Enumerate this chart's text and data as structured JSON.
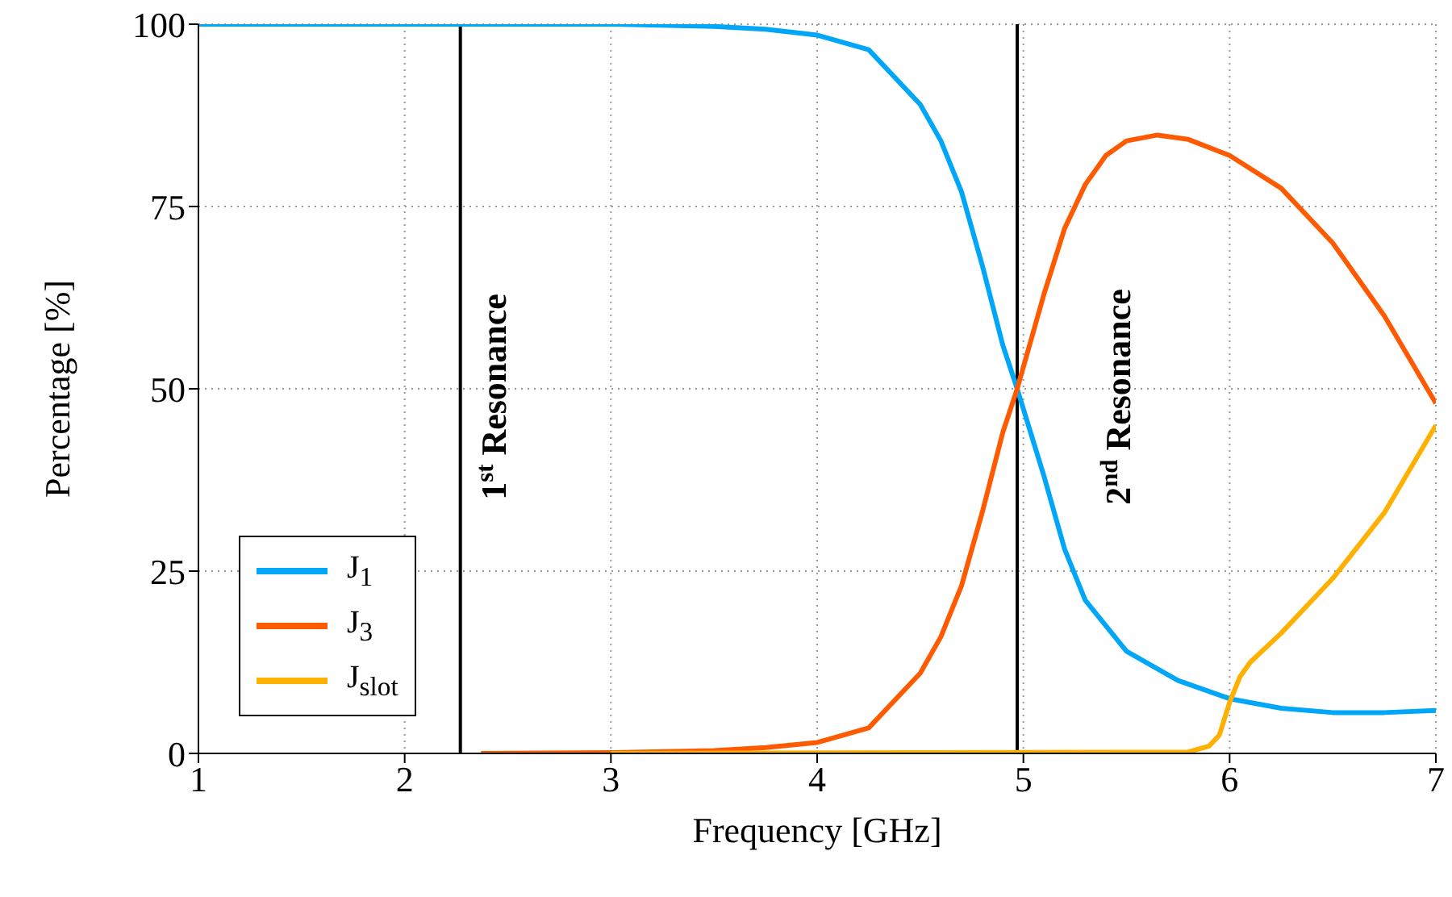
{
  "chart_data": {
    "type": "line",
    "xlabel": "Frequency [GHz]",
    "ylabel": "Percentage [%]",
    "xlim": [
      1,
      7
    ],
    "xticks": [
      1,
      2,
      3,
      4,
      5,
      6,
      7
    ],
    "ylim": [
      0,
      100
    ],
    "yticks": [
      0,
      25,
      50,
      75,
      100
    ],
    "grid": true,
    "legend": "bottom left",
    "marker": "none",
    "line_style": "solid",
    "series": [
      {
        "name": "J$_{1}$",
        "color": "#00a6f7",
        "x": [
          1,
          2,
          3,
          3.5,
          3.75,
          4,
          4.25,
          4.5,
          4.6,
          4.7,
          4.8,
          4.9,
          4.97,
          5.1,
          5.2,
          5.3,
          5.5,
          5.75,
          6,
          6.25,
          6.5,
          6.75,
          7
        ],
        "values": [
          100,
          100,
          100,
          99.7,
          99.3,
          98.5,
          96.5,
          89,
          84,
          77,
          67,
          56,
          50,
          38,
          28,
          21,
          14,
          10,
          7.5,
          6.2,
          5.6,
          5.6,
          5.9
        ]
      },
      {
        "name": "J$_{3}$",
        "color": "#ff5a00",
        "x": [
          2.37,
          3,
          3.5,
          3.75,
          4,
          4.25,
          4.5,
          4.6,
          4.7,
          4.8,
          4.9,
          4.97,
          5.1,
          5.2,
          5.3,
          5.4,
          5.5,
          5.65,
          5.8,
          6,
          6.25,
          6.5,
          6.75,
          7
        ],
        "values": [
          0,
          0.1,
          0.4,
          0.8,
          1.5,
          3.5,
          11,
          16,
          23,
          33,
          44,
          50,
          63,
          72,
          78,
          82,
          84,
          84.8,
          84.2,
          82,
          77.5,
          70,
          60,
          48
        ]
      },
      {
        "name": "J$_{slot}$",
        "color": "#ffb000",
        "x": [
          3,
          5.8,
          5.9,
          5.95,
          6,
          6.05,
          6.1,
          6.25,
          6.5,
          6.75,
          7
        ],
        "values": [
          0,
          0.2,
          1,
          2.5,
          7,
          10.5,
          12.5,
          16.5,
          24,
          33,
          45
        ]
      }
    ],
    "ref_lines": [
      {
        "axis": "x",
        "value": 2.27,
        "label": "1$^{st}$ Resonance",
        "color": "#000000"
      },
      {
        "axis": "x",
        "value": 4.97,
        "label": "2$^{nd}$ Resonance",
        "color": "#000000"
      }
    ]
  }
}
